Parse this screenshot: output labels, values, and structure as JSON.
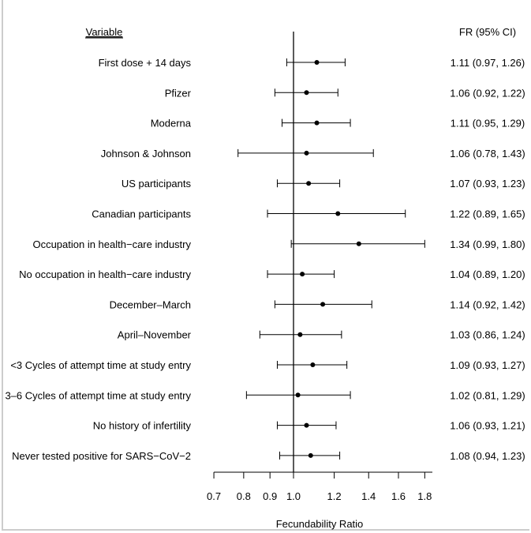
{
  "chart_data": {
    "type": "forest",
    "scale": "log",
    "xlabel": "Fecundability Ratio",
    "xlim": [
      0.7,
      1.85
    ],
    "xticks": [
      0.7,
      0.8,
      0.9,
      1.0,
      1.2,
      1.4,
      1.6,
      1.8
    ],
    "xtick_labels": [
      "0.7",
      "0.8",
      "0.9",
      "1.0",
      "1.2",
      "1.4",
      "1.6",
      "1.8"
    ],
    "reference_line": 1.0,
    "grid": false,
    "left_header": "Variable",
    "right_header": "FR (95% CI)",
    "rows": [
      {
        "label": "First dose + 14 days",
        "est": 1.11,
        "lo": 0.97,
        "hi": 1.26,
        "text": "1.11 (0.97, 1.26)"
      },
      {
        "label": "Pfizer",
        "est": 1.06,
        "lo": 0.92,
        "hi": 1.22,
        "text": "1.06 (0.92, 1.22)"
      },
      {
        "label": "Moderna",
        "est": 1.11,
        "lo": 0.95,
        "hi": 1.29,
        "text": "1.11 (0.95, 1.29)"
      },
      {
        "label": "Johnson & Johnson",
        "est": 1.06,
        "lo": 0.78,
        "hi": 1.43,
        "text": "1.06 (0.78, 1.43)"
      },
      {
        "label": "US participants",
        "est": 1.07,
        "lo": 0.93,
        "hi": 1.23,
        "text": "1.07 (0.93, 1.23)"
      },
      {
        "label": "Canadian participants",
        "est": 1.22,
        "lo": 0.89,
        "hi": 1.65,
        "text": "1.22 (0.89, 1.65)"
      },
      {
        "label": "Occupation in health−care industry",
        "est": 1.34,
        "lo": 0.99,
        "hi": 1.8,
        "text": "1.34 (0.99, 1.80)"
      },
      {
        "label": "No occupation in health−care industry",
        "est": 1.04,
        "lo": 0.89,
        "hi": 1.2,
        "text": "1.04 (0.89, 1.20)"
      },
      {
        "label": "December–March",
        "est": 1.14,
        "lo": 0.92,
        "hi": 1.42,
        "text": "1.14 (0.92, 1.42)"
      },
      {
        "label": "April–November",
        "est": 1.03,
        "lo": 0.86,
        "hi": 1.24,
        "text": "1.03 (0.86, 1.24)"
      },
      {
        "label": "<3 Cycles of attempt time at study entry",
        "est": 1.09,
        "lo": 0.93,
        "hi": 1.27,
        "text": "1.09 (0.93, 1.27)"
      },
      {
        "label": "3–6 Cycles of attempt time at study entry",
        "est": 1.02,
        "lo": 0.81,
        "hi": 1.29,
        "text": "1.02 (0.81, 1.29)"
      },
      {
        "label": "No history of infertility",
        "est": 1.06,
        "lo": 0.93,
        "hi": 1.21,
        "text": "1.06 (0.93, 1.21)"
      },
      {
        "label": "Never tested positive for SARS−CoV−2",
        "est": 1.08,
        "lo": 0.94,
        "hi": 1.23,
        "text": "1.08 (0.94, 1.23)"
      }
    ]
  }
}
